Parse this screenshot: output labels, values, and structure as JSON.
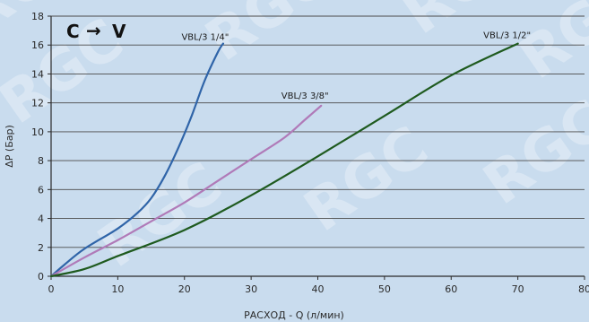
{
  "chart_data": {
    "type": "line",
    "annotation": "C",
    "annotation_arrow": "→",
    "annotation_target": "V",
    "xlabel": "РАСХОД - Q (л/мин)",
    "ylabel": "ΔP (Бар)",
    "xlim": [
      0,
      80
    ],
    "ylim": [
      0,
      18
    ],
    "x_ticks": [
      0,
      10,
      20,
      30,
      40,
      50,
      60,
      70,
      80
    ],
    "y_ticks": [
      0,
      2,
      4,
      6,
      8,
      10,
      12,
      14,
      16,
      18
    ],
    "grid": "horizontal",
    "watermark": "RGC",
    "series": [
      {
        "name": "VBL/3 1/4\"",
        "color": "#2f64a8",
        "x": [
          0,
          2,
          5,
          10,
          13,
          15,
          17,
          19,
          21,
          23,
          25,
          25.8
        ],
        "y": [
          0,
          0.8,
          1.9,
          3.3,
          4.4,
          5.4,
          6.9,
          8.8,
          11.0,
          13.5,
          15.5,
          16.1
        ]
      },
      {
        "name": "VBL/3 3/8\"",
        "color": "#b07ab8",
        "x": [
          0,
          5,
          10,
          15,
          20,
          25,
          30,
          35,
          38,
          40.5
        ],
        "y": [
          0,
          1.3,
          2.5,
          3.8,
          5.1,
          6.6,
          8.1,
          9.6,
          10.8,
          11.8
        ]
      },
      {
        "name": "VBL/3 1/2\"",
        "color": "#1e5a1e",
        "x": [
          0,
          5,
          10,
          20,
          30,
          40,
          50,
          60,
          70
        ],
        "y": [
          0,
          0.5,
          1.4,
          3.2,
          5.6,
          8.3,
          11.1,
          13.9,
          16.1
        ]
      }
    ]
  }
}
